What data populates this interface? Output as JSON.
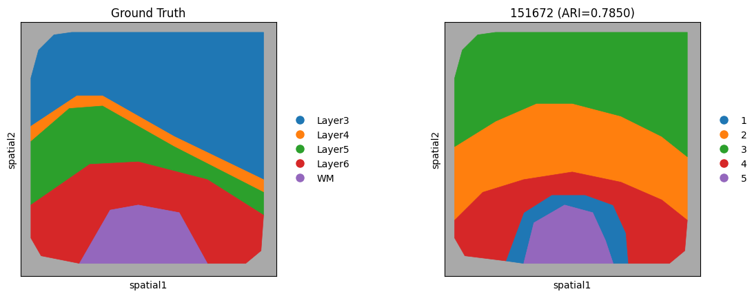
{
  "chart_data": [
    {
      "type": "spatial",
      "title": "Ground Truth",
      "x_label": "spatial1",
      "y_label": "spatial2",
      "xlim": [
        0,
        100
      ],
      "ylim": [
        0,
        100
      ],
      "tick_labels": false,
      "legend": "center left",
      "series": [
        {
          "name": "Layer3",
          "color": "#1f77b4",
          "polygon": [
            [
              4,
              59
            ],
            [
              4,
              78
            ],
            [
              7,
              89
            ],
            [
              13,
              95
            ],
            [
              20,
              96
            ],
            [
              95,
              96
            ],
            [
              95,
              38
            ],
            [
              60,
              55
            ],
            [
              32,
              71
            ],
            [
              22,
              71
            ]
          ]
        },
        {
          "name": "Layer4",
          "color": "#ff7f0e",
          "polygon": [
            [
              4,
              53
            ],
            [
              19,
              66
            ],
            [
              32,
              67
            ],
            [
              60,
              51
            ],
            [
              95,
              33
            ],
            [
              95,
              38
            ],
            [
              60,
              55
            ],
            [
              32,
              71
            ],
            [
              22,
              71
            ],
            [
              4,
              59
            ]
          ]
        },
        {
          "name": "Layer5",
          "color": "#2ca02c",
          "polygon": [
            [
              4,
              28
            ],
            [
              27,
              44
            ],
            [
              46,
              45
            ],
            [
              73,
              38
            ],
            [
              95,
              24
            ],
            [
              95,
              33
            ],
            [
              60,
              51
            ],
            [
              32,
              67
            ],
            [
              19,
              66
            ],
            [
              4,
              53
            ]
          ]
        },
        {
          "name": "Layer6",
          "color": "#d62728",
          "polygon": [
            [
              4,
              28
            ],
            [
              4,
              15
            ],
            [
              8,
              8
            ],
            [
              23,
              5
            ],
            [
              35,
              26
            ],
            [
              46,
              28
            ],
            [
              62,
              25
            ],
            [
              73,
              5
            ],
            [
              88,
              5
            ],
            [
              94,
              10
            ],
            [
              95,
              24
            ],
            [
              73,
              38
            ],
            [
              46,
              45
            ],
            [
              27,
              44
            ]
          ]
        },
        {
          "name": "WM",
          "color": "#9467bd",
          "polygon": [
            [
              23,
              5
            ],
            [
              35,
              26
            ],
            [
              46,
              28
            ],
            [
              62,
              25
            ],
            [
              73,
              5
            ]
          ]
        }
      ]
    },
    {
      "type": "spatial",
      "title": "151672 (ARI=0.7850)",
      "x_label": "spatial1",
      "y_label": "spatial2",
      "xlim": [
        0,
        100
      ],
      "ylim": [
        0,
        100
      ],
      "tick_labels": false,
      "legend": "center left",
      "series": [
        {
          "name": "1",
          "color": "#1f77b4",
          "polygon": [
            [
              24,
              6
            ],
            [
              31,
              25
            ],
            [
              42,
              32
            ],
            [
              55,
              32
            ],
            [
              66,
              28
            ],
            [
              71,
              17
            ],
            [
              72,
              5
            ],
            [
              66,
              5
            ],
            [
              63,
              14
            ],
            [
              58,
              25
            ],
            [
              47,
              28
            ],
            [
              35,
              21
            ],
            [
              31,
              5
            ]
          ]
        },
        {
          "name": "2",
          "color": "#ff7f0e",
          "polygon": [
            [
              4,
              22
            ],
            [
              4,
              51
            ],
            [
              20,
              61
            ],
            [
              36,
              68
            ],
            [
              50,
              68
            ],
            [
              69,
              63
            ],
            [
              85,
              55
            ],
            [
              95,
              47
            ],
            [
              95,
              22
            ],
            [
              85,
              30
            ],
            [
              69,
              37
            ],
            [
              50,
              41
            ],
            [
              31,
              38
            ],
            [
              15,
              33
            ]
          ]
        },
        {
          "name": "3",
          "color": "#2ca02c",
          "polygon": [
            [
              4,
              51
            ],
            [
              4,
              78
            ],
            [
              7,
              89
            ],
            [
              13,
              95
            ],
            [
              20,
              96
            ],
            [
              95,
              96
            ],
            [
              95,
              47
            ],
            [
              85,
              55
            ],
            [
              69,
              63
            ],
            [
              50,
              68
            ],
            [
              36,
              68
            ],
            [
              20,
              61
            ]
          ]
        },
        {
          "name": "4",
          "color": "#d62728",
          "polygon": [
            [
              4,
              22
            ],
            [
              15,
              33
            ],
            [
              31,
              38
            ],
            [
              50,
              41
            ],
            [
              69,
              37
            ],
            [
              85,
              30
            ],
            [
              95,
              22
            ],
            [
              94,
              10
            ],
            [
              88,
              5
            ],
            [
              72,
              5
            ],
            [
              71,
              17
            ],
            [
              66,
              28
            ],
            [
              55,
              32
            ],
            [
              42,
              32
            ],
            [
              31,
              25
            ],
            [
              24,
              6
            ],
            [
              8,
              8
            ],
            [
              4,
              15
            ]
          ]
        },
        {
          "name": "5",
          "color": "#9467bd",
          "polygon": [
            [
              31,
              5
            ],
            [
              35,
              21
            ],
            [
              47,
              28
            ],
            [
              58,
              25
            ],
            [
              63,
              14
            ],
            [
              66,
              5
            ]
          ]
        }
      ]
    }
  ]
}
